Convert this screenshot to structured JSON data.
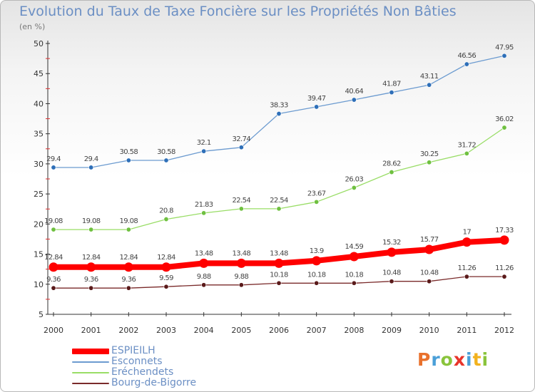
{
  "header": {
    "title": "Evolution du Taux de Taxe Foncière sur les Propriétés Non Bâties",
    "unit": "(en %)"
  },
  "logo": {
    "letters": [
      "P",
      "r",
      "o",
      "x",
      "i",
      "t",
      "i"
    ],
    "colors": [
      "#e9712c",
      "#4a9fd8",
      "#8ac43c",
      "#e8342a",
      "#4a9fd8",
      "#f2b21e",
      "#8ac43c"
    ]
  },
  "chart_data": {
    "type": "line",
    "title": "Evolution du Taux de Taxe Foncière sur les Propriétés Non Bâties",
    "ylabel": "(en %)",
    "xlabel": "",
    "x": [
      "2000",
      "2001",
      "2002",
      "2003",
      "2004",
      "2005",
      "2006",
      "2007",
      "2008",
      "2009",
      "2010",
      "2011",
      "2012"
    ],
    "ylim": [
      5,
      50
    ],
    "yticks": [
      5,
      10,
      15,
      20,
      25,
      30,
      35,
      40,
      45,
      50
    ],
    "grid": false,
    "legend": "bottom-left",
    "series": [
      {
        "name": "ESPIEILH",
        "color": "#ff0000",
        "values": [
          12.84,
          12.84,
          12.84,
          12.84,
          13.48,
          13.48,
          13.48,
          13.9,
          14.59,
          15.32,
          15.77,
          17,
          17.33
        ],
        "labels": [
          "12.84",
          "12.84",
          "12.84",
          "12.84",
          "13.48",
          "13.48",
          "13.48",
          "13.9",
          "14.59",
          "15.32",
          "15.77",
          "17",
          "17.33"
        ]
      },
      {
        "name": "Esconnets",
        "color": "#6c9bd0",
        "values": [
          29.4,
          29.4,
          30.58,
          30.58,
          32.1,
          32.74,
          38.33,
          39.47,
          40.64,
          41.87,
          43.11,
          46.56,
          47.95
        ],
        "labels": [
          "29.4",
          "29.4",
          "30.58",
          "30.58",
          "32.1",
          "32.74",
          "38.33",
          "39.47",
          "40.64",
          "41.87",
          "43.11",
          "46.56",
          "47.95"
        ]
      },
      {
        "name": "Eréchendets",
        "color": "#99dd66",
        "values": [
          19.08,
          19.08,
          19.08,
          20.8,
          21.83,
          22.54,
          22.54,
          23.67,
          26.03,
          28.62,
          30.25,
          31.72,
          36.02
        ],
        "labels": [
          "19.08",
          "19.08",
          "19.08",
          "20.8",
          "21.83",
          "22.54",
          "22.54",
          "23.67",
          "26.03",
          "28.62",
          "30.25",
          "31.72",
          "36.02"
        ]
      },
      {
        "name": "Bourg-de-Bigorre",
        "color": "#7a2a2a",
        "values": [
          9.36,
          9.36,
          9.36,
          9.59,
          9.88,
          9.88,
          10.18,
          10.18,
          10.18,
          10.48,
          10.48,
          11.26,
          11.26
        ],
        "labels": [
          "9.36",
          "9.36",
          "9.36",
          "9.59",
          "9.88",
          "9.88",
          "10.18",
          "10.18",
          "10.18",
          "10.48",
          "10.48",
          "11.26",
          "11.26"
        ]
      }
    ]
  }
}
